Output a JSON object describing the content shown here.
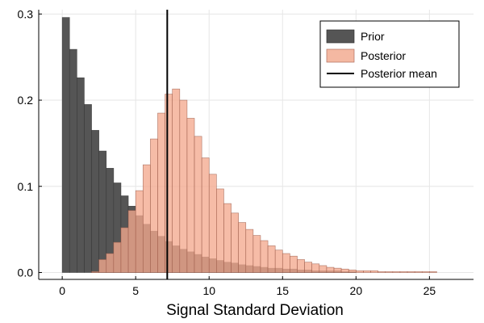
{
  "chart_data": {
    "type": "bar",
    "title": "",
    "xlabel": "Signal Standard Deviation",
    "ylabel": "",
    "xlim": [
      -1.6,
      28.0
    ],
    "ylim": [
      -0.008,
      0.305
    ],
    "x_ticks": [
      0,
      5,
      10,
      15,
      20,
      25
    ],
    "y_ticks": [
      0.0,
      0.1,
      0.2,
      0.3
    ],
    "y_tick_labels": [
      "0.0",
      "0.1",
      "0.2",
      "0.3"
    ],
    "grid": true,
    "legend_position": "top-right",
    "bin_width": 0.5,
    "bin_start": 0,
    "series": [
      {
        "name": "Prior",
        "color": "#555555",
        "values": [
          0.296,
          0.259,
          0.226,
          0.195,
          0.165,
          0.141,
          0.121,
          0.104,
          0.089,
          0.077,
          0.066,
          0.056,
          0.048,
          0.042,
          0.036,
          0.031,
          0.027,
          0.024,
          0.021,
          0.018,
          0.016,
          0.014,
          0.012,
          0.011,
          0.009,
          0.008,
          0.007,
          0.006,
          0.005,
          0.005,
          0.004,
          0.004,
          0.003,
          0.003,
          0.002,
          0.002,
          0.002,
          0.002,
          0.001,
          0.001
        ]
      },
      {
        "name": "Posterior",
        "color": "#f4a98e",
        "values": [
          0.0,
          0.0,
          0.0,
          0.0,
          0.001,
          0.015,
          0.022,
          0.035,
          0.052,
          0.072,
          0.095,
          0.125,
          0.155,
          0.185,
          0.207,
          0.213,
          0.2,
          0.179,
          0.158,
          0.133,
          0.114,
          0.097,
          0.08,
          0.069,
          0.058,
          0.05,
          0.043,
          0.037,
          0.031,
          0.026,
          0.022,
          0.019,
          0.015,
          0.012,
          0.01,
          0.008,
          0.006,
          0.005,
          0.004,
          0.003,
          0.002,
          0.002,
          0.002,
          0.001,
          0.001,
          0.001,
          0.001,
          0.001,
          0.001,
          0.001,
          0.001,
          0.0,
          0.0,
          0.0,
          0.0,
          0.0
        ]
      }
    ],
    "vline": {
      "name": "Posterior mean",
      "x": 7.15,
      "color": "#000000"
    },
    "legend": [
      "Prior",
      "Posterior",
      "Posterior mean"
    ]
  }
}
